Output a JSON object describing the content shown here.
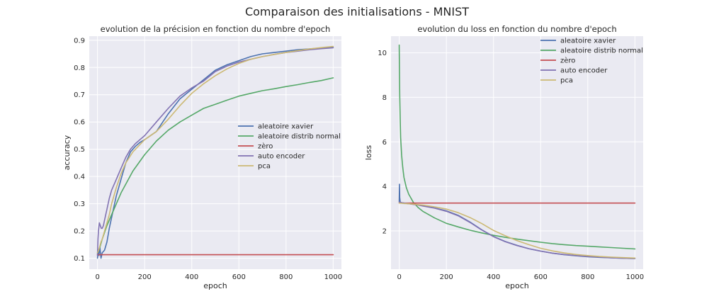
{
  "figure": {
    "suptitle": "Comparaison des initialisations - MNIST"
  },
  "colors": {
    "background": "#eaeaf2",
    "xavier": "#4c72b0",
    "normal": "#55a868",
    "zero": "#c44e52",
    "autoencoder": "#8172b2",
    "pca": "#ccb974"
  },
  "chart_data": [
    {
      "type": "line",
      "title": "evolution de la précision en fonction du nombre d'epoch",
      "xlabel": "epoch",
      "ylabel": "accuracy",
      "xlim": [
        -35,
        1035
      ],
      "ylim": [
        0.06,
        0.915
      ],
      "xticks": [
        0,
        200,
        400,
        600,
        800,
        1000
      ],
      "yticks": [
        0.1,
        0.2,
        0.3,
        0.4,
        0.5,
        0.6,
        0.7,
        0.8,
        0.9
      ],
      "grid": true,
      "legend": "center-right",
      "series": [
        {
          "name": "aleatoire xavier",
          "color": "#4c72b0",
          "x": [
            0,
            3,
            6,
            10,
            15,
            20,
            30,
            40,
            50,
            60,
            70,
            80,
            90,
            100,
            120,
            140,
            160,
            180,
            200,
            250,
            300,
            350,
            400,
            450,
            500,
            550,
            600,
            650,
            700,
            750,
            800,
            850,
            900,
            950,
            1000
          ],
          "y": [
            0.1,
            0.13,
            0.11,
            0.14,
            0.1,
            0.12,
            0.13,
            0.16,
            0.21,
            0.25,
            0.29,
            0.33,
            0.36,
            0.39,
            0.45,
            0.49,
            0.51,
            0.525,
            0.535,
            0.565,
            0.63,
            0.685,
            0.72,
            0.755,
            0.79,
            0.81,
            0.825,
            0.84,
            0.85,
            0.855,
            0.86,
            0.865,
            0.868,
            0.871,
            0.873
          ]
        },
        {
          "name": "aleatoire distrib normal",
          "color": "#55a868",
          "x": [
            0,
            10,
            20,
            40,
            60,
            80,
            100,
            150,
            200,
            250,
            300,
            350,
            400,
            450,
            500,
            550,
            600,
            650,
            700,
            750,
            800,
            850,
            900,
            950,
            1000
          ],
          "y": [
            0.12,
            0.14,
            0.17,
            0.22,
            0.26,
            0.3,
            0.34,
            0.42,
            0.48,
            0.53,
            0.57,
            0.6,
            0.625,
            0.65,
            0.665,
            0.68,
            0.695,
            0.705,
            0.715,
            0.722,
            0.73,
            0.737,
            0.745,
            0.752,
            0.762
          ]
        },
        {
          "name": "zèro",
          "color": "#c44e52",
          "x": [
            0,
            1000
          ],
          "y": [
            0.113,
            0.113
          ]
        },
        {
          "name": "auto encoder",
          "color": "#8172b2",
          "x": [
            0,
            2,
            4,
            8,
            12,
            16,
            20,
            25,
            30,
            40,
            50,
            60,
            80,
            100,
            120,
            140,
            160,
            180,
            200,
            250,
            300,
            350,
            400,
            450,
            500,
            550,
            600,
            650,
            700,
            750,
            800,
            850,
            900,
            950,
            1000
          ],
          "y": [
            0.11,
            0.17,
            0.2,
            0.23,
            0.22,
            0.21,
            0.21,
            0.22,
            0.24,
            0.28,
            0.32,
            0.35,
            0.39,
            0.43,
            0.47,
            0.5,
            0.52,
            0.535,
            0.55,
            0.6,
            0.65,
            0.695,
            0.725,
            0.75,
            0.785,
            0.805,
            0.82,
            0.83,
            0.84,
            0.848,
            0.855,
            0.86,
            0.865,
            0.869,
            0.872
          ]
        },
        {
          "name": "pca",
          "color": "#ccb974",
          "x": [
            0,
            5,
            10,
            15,
            20,
            30,
            40,
            50,
            60,
            80,
            100,
            120,
            150,
            200,
            250,
            300,
            350,
            400,
            450,
            500,
            550,
            600,
            650,
            700,
            750,
            800,
            850,
            900,
            950,
            1000
          ],
          "y": [
            0.12,
            0.13,
            0.145,
            0.16,
            0.17,
            0.2,
            0.23,
            0.26,
            0.3,
            0.36,
            0.41,
            0.45,
            0.49,
            0.535,
            0.565,
            0.61,
            0.66,
            0.705,
            0.74,
            0.77,
            0.795,
            0.815,
            0.83,
            0.84,
            0.848,
            0.855,
            0.862,
            0.868,
            0.873,
            0.877
          ]
        }
      ]
    },
    {
      "type": "line",
      "title": "evolution du loss en fonction du nombre d'epoch",
      "xlabel": "epoch",
      "ylabel": "loss",
      "xlim": [
        -35,
        1035
      ],
      "ylim": [
        0.28,
        10.75
      ],
      "xticks": [
        0,
        200,
        400,
        600,
        800,
        1000
      ],
      "yticks": [
        2,
        4,
        6,
        8,
        10
      ],
      "grid": true,
      "legend": "upper-right",
      "series": [
        {
          "name": "aleatoire xavier",
          "color": "#4c72b0",
          "x": [
            0,
            1,
            2,
            4,
            6,
            10,
            20,
            40,
            60,
            80,
            100,
            150,
            200,
            250,
            300,
            350,
            400,
            450,
            500,
            550,
            600,
            650,
            700,
            750,
            800,
            850,
            900,
            950,
            1000
          ],
          "y": [
            3.3,
            4.1,
            3.5,
            3.3,
            3.28,
            3.26,
            3.25,
            3.22,
            3.2,
            3.17,
            3.13,
            3.03,
            2.9,
            2.7,
            2.4,
            2.05,
            1.75,
            1.52,
            1.35,
            1.2,
            1.09,
            1.0,
            0.93,
            0.88,
            0.84,
            0.81,
            0.79,
            0.77,
            0.76
          ]
        },
        {
          "name": "aleatoire distrib normal",
          "color": "#55a868",
          "x": [
            0,
            1,
            2,
            4,
            6,
            10,
            15,
            20,
            30,
            40,
            60,
            80,
            100,
            150,
            200,
            250,
            300,
            350,
            400,
            450,
            500,
            550,
            600,
            650,
            700,
            750,
            800,
            850,
            900,
            950,
            1000
          ],
          "y": [
            10.35,
            9.0,
            8.1,
            7.0,
            6.2,
            5.4,
            4.85,
            4.4,
            3.95,
            3.65,
            3.28,
            3.05,
            2.88,
            2.58,
            2.34,
            2.18,
            2.03,
            1.91,
            1.8,
            1.71,
            1.63,
            1.56,
            1.49,
            1.43,
            1.38,
            1.34,
            1.31,
            1.28,
            1.25,
            1.22,
            1.19
          ]
        },
        {
          "name": "zèro",
          "color": "#c44e52",
          "x": [
            0,
            1000
          ],
          "y": [
            3.25,
            3.25
          ]
        },
        {
          "name": "auto encoder",
          "color": "#8172b2",
          "x": [
            0,
            10,
            20,
            40,
            60,
            80,
            100,
            150,
            200,
            250,
            300,
            350,
            400,
            450,
            500,
            550,
            600,
            650,
            700,
            750,
            800,
            850,
            900,
            950,
            1000
          ],
          "y": [
            3.3,
            3.27,
            3.25,
            3.22,
            3.19,
            3.16,
            3.12,
            3.02,
            2.88,
            2.68,
            2.38,
            2.04,
            1.74,
            1.51,
            1.34,
            1.2,
            1.09,
            1.0,
            0.94,
            0.89,
            0.85,
            0.82,
            0.79,
            0.77,
            0.76
          ]
        },
        {
          "name": "pca",
          "color": "#ccb974",
          "x": [
            0,
            10,
            20,
            40,
            60,
            80,
            100,
            150,
            200,
            250,
            300,
            350,
            400,
            450,
            500,
            550,
            600,
            650,
            700,
            750,
            800,
            850,
            900,
            950,
            1000
          ],
          "y": [
            3.25,
            3.24,
            3.23,
            3.22,
            3.2,
            3.18,
            3.16,
            3.08,
            2.98,
            2.82,
            2.6,
            2.33,
            2.02,
            1.78,
            1.56,
            1.38,
            1.22,
            1.1,
            1.01,
            0.94,
            0.89,
            0.85,
            0.82,
            0.8,
            0.78
          ]
        }
      ]
    }
  ]
}
